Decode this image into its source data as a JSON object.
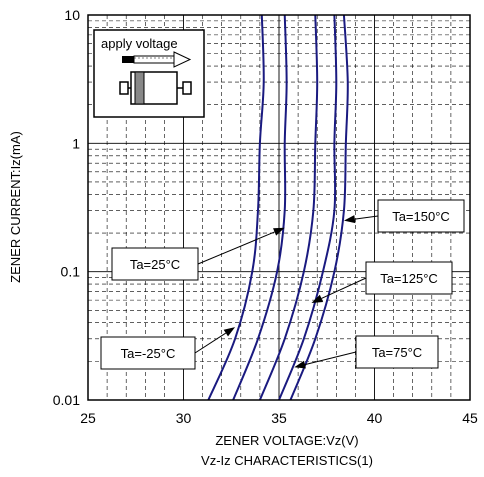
{
  "chart_data": {
    "type": "line",
    "title": "Vz-Iz CHARACTERISTICS(1)",
    "xlabel": "ZENER VOLTAGE:Vz(V)",
    "ylabel": "ZENER CURRENT:Iz(mA)",
    "xlim": [
      25,
      45
    ],
    "ylim": [
      0.01,
      10
    ],
    "yscale": "log",
    "grid": true,
    "x_ticks": [
      "25",
      "30",
      "35",
      "40",
      "45"
    ],
    "y_ticks": [
      "0.01",
      "0.1",
      "1",
      "10"
    ],
    "series": [
      {
        "name": "Ta=-25°C",
        "points": [
          [
            31.3,
            0.01
          ],
          [
            32.7,
            0.03
          ],
          [
            33.6,
            0.1
          ],
          [
            33.9,
            0.3
          ],
          [
            34.0,
            1
          ],
          [
            34.2,
            3
          ],
          [
            34.1,
            10
          ]
        ]
      },
      {
        "name": "Ta=25°C",
        "points": [
          [
            32.6,
            0.01
          ],
          [
            33.9,
            0.03
          ],
          [
            34.9,
            0.1
          ],
          [
            35.3,
            0.3
          ],
          [
            35.3,
            1
          ],
          [
            35.4,
            3
          ],
          [
            35.3,
            10
          ]
        ]
      },
      {
        "name": "Ta=75°C",
        "points": [
          [
            34.0,
            0.01
          ],
          [
            35.3,
            0.03
          ],
          [
            36.3,
            0.1
          ],
          [
            36.8,
            0.3
          ],
          [
            36.9,
            1
          ],
          [
            37.0,
            3
          ],
          [
            36.9,
            10
          ]
        ]
      },
      {
        "name": "Ta=125°C",
        "points": [
          [
            35.0,
            0.01
          ],
          [
            36.3,
            0.03
          ],
          [
            37.3,
            0.1
          ],
          [
            37.9,
            0.3
          ],
          [
            37.9,
            1
          ],
          [
            38.0,
            3
          ],
          [
            37.9,
            10
          ]
        ]
      },
      {
        "name": "Ta=150°C",
        "points": [
          [
            35.6,
            0.01
          ],
          [
            36.9,
            0.03
          ],
          [
            37.9,
            0.1
          ],
          [
            38.4,
            0.3
          ],
          [
            38.5,
            1
          ],
          [
            38.6,
            3
          ],
          [
            38.4,
            10
          ]
        ]
      }
    ],
    "annotations": [
      {
        "label": "Ta=150°C",
        "target": [
          38.4,
          0.25
        ]
      },
      {
        "label": "Ta=25°C",
        "target": [
          35.3,
          0.22
        ]
      },
      {
        "label": "Ta=125°C",
        "target": [
          36.7,
          0.057
        ]
      },
      {
        "label": "Ta=-25°C",
        "target": [
          32.7,
          0.037
        ]
      },
      {
        "label": "Ta=75°C",
        "target": [
          35.8,
          0.018
        ]
      }
    ],
    "inset_label": "apply voltage",
    "line_color": "#1a1a80"
  }
}
